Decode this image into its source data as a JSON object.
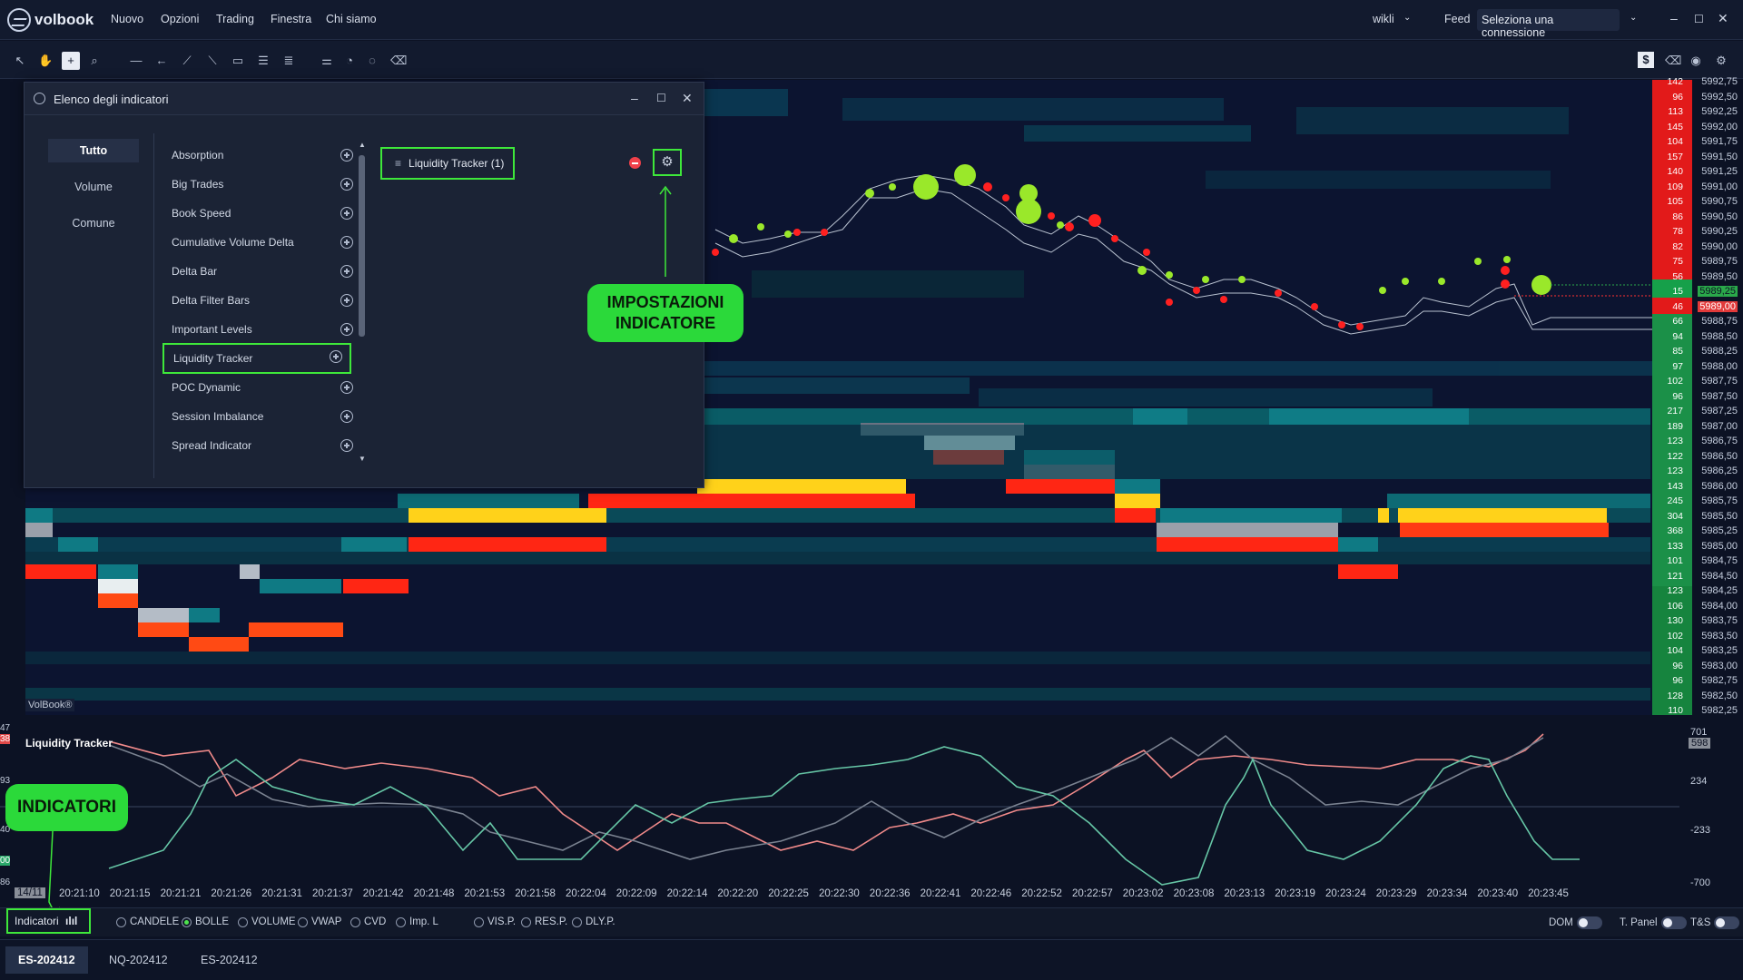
{
  "app": {
    "name": "volbook"
  },
  "menu": {
    "items": [
      "Nuovo",
      "Opzioni",
      "Trading",
      "Finestra",
      "Chi siamo"
    ],
    "user": "wikli",
    "feed_label": "Feed",
    "connection_select": "Seleziona una connessione"
  },
  "toolbar": {
    "right_badge": "$"
  },
  "chart": {
    "watermark": "VolBook®",
    "last_price": "5989,25",
    "bid_price": "5989,00"
  },
  "price_axis": {
    "prices": [
      "5992,75",
      "5992,50",
      "5992,25",
      "5992,00",
      "5991,75",
      "5991,50",
      "5991,25",
      "5991,00",
      "5990,75",
      "5990,50",
      "5990,25",
      "5990,00",
      "5989,75",
      "5989,50",
      "5989,25",
      "5989,00",
      "5988,75",
      "5988,50",
      "5988,25",
      "5988,00",
      "5987,75",
      "5987,50",
      "5987,25",
      "5987,00",
      "5986,75",
      "5986,50",
      "5986,25",
      "5986,00",
      "5985,75",
      "5985,50",
      "5985,25",
      "5985,00",
      "5984,75",
      "5984,50",
      "5984,25",
      "5984,00",
      "5983,75",
      "5983,50",
      "5983,25",
      "5983,00",
      "5982,75",
      "5982,50",
      "5982,25"
    ],
    "sizes": [
      "142",
      "96",
      "113",
      "145",
      "104",
      "157",
      "140",
      "109",
      "105",
      "86",
      "78",
      "82",
      "75",
      "56",
      "15",
      "46",
      "66",
      "94",
      "85",
      "97",
      "102",
      "96",
      "217",
      "189",
      "123",
      "122",
      "123",
      "143",
      "245",
      "304",
      "368",
      "133",
      "101",
      "121",
      "123",
      "106",
      "130",
      "102",
      "104",
      "96",
      "96",
      "128",
      "110"
    ]
  },
  "indicator_window": {
    "title": "Elenco degli indicatori",
    "categories": [
      "Tutto",
      "Volume",
      "Comune"
    ],
    "indicators": [
      "Absorption",
      "Big Trades",
      "Book Speed",
      "Cumulative Volume Delta",
      "Delta Bar",
      "Delta Filter Bars",
      "Important Levels",
      "Liquidity Tracker",
      "POC Dynamic",
      "Session Imbalance",
      "Spread Indicator"
    ],
    "selected_item": "Liquidity Tracker (1)"
  },
  "callouts": {
    "settings": "IMPOSTAZIONI INDICATORE",
    "indicators": "INDICATORI"
  },
  "subpanel": {
    "title": "Liquidity Tracker",
    "right_axis": [
      "701",
      "598",
      "234",
      "-233",
      "-700"
    ],
    "left_axis": [
      "47",
      "38",
      "93",
      "40",
      "00",
      "86"
    ]
  },
  "time_axis": {
    "date": "14/11",
    "labels": [
      "20:21:10",
      "20:21:15",
      "20:21:21",
      "20:21:26",
      "20:21:31",
      "20:21:37",
      "20:21:42",
      "20:21:48",
      "20:21:53",
      "20:21:58",
      "20:22:04",
      "20:22:09",
      "20:22:14",
      "20:22:20",
      "20:22:25",
      "20:22:30",
      "20:22:36",
      "20:22:41",
      "20:22:46",
      "20:22:52",
      "20:22:57",
      "20:23:02",
      "20:23:08",
      "20:23:13",
      "20:23:19",
      "20:23:24",
      "20:23:29",
      "20:23:34",
      "20:23:40",
      "20:23:45"
    ]
  },
  "indicator_bar": {
    "button": "Indicatori",
    "options": [
      {
        "label": "CANDELE",
        "on": false
      },
      {
        "label": "BOLLE",
        "on": true
      },
      {
        "label": "VOLUME",
        "on": false
      },
      {
        "label": "VWAP",
        "on": false
      },
      {
        "label": "CVD",
        "on": false
      },
      {
        "label": "Imp. L",
        "on": false
      }
    ],
    "options2": [
      {
        "label": "VIS.P.",
        "on": false
      },
      {
        "label": "RES.P.",
        "on": false
      },
      {
        "label": "DLY.P.",
        "on": false
      }
    ],
    "toggles": [
      "DOM",
      "T. Panel",
      "T&S"
    ]
  },
  "tabs": [
    "ES-202412",
    "NQ-202412",
    "ES-202412"
  ],
  "colors": {
    "accent_green": "#3ee83a",
    "bid": "#ff1a1a",
    "ask": "#2aa84a",
    "teal": "#0e6d74"
  }
}
